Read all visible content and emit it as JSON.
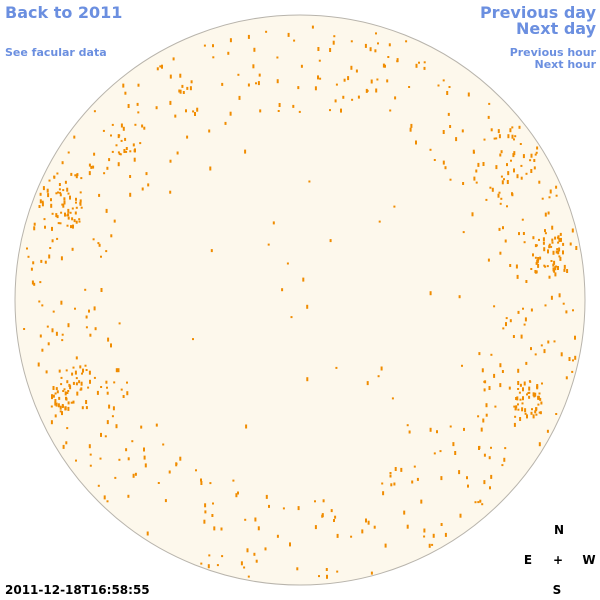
{
  "links": {
    "back_year": "Back to 2011",
    "facular": "See facular data",
    "previous_day": "Previous day",
    "next_day": "Next day",
    "previous_hour": "Previous hour",
    "next_hour": "Next hour"
  },
  "compass": {
    "north": "N",
    "east": "E",
    "center": "+",
    "west": "W",
    "south": "S"
  },
  "timestamp": "2011-12-18T16:58:55"
}
